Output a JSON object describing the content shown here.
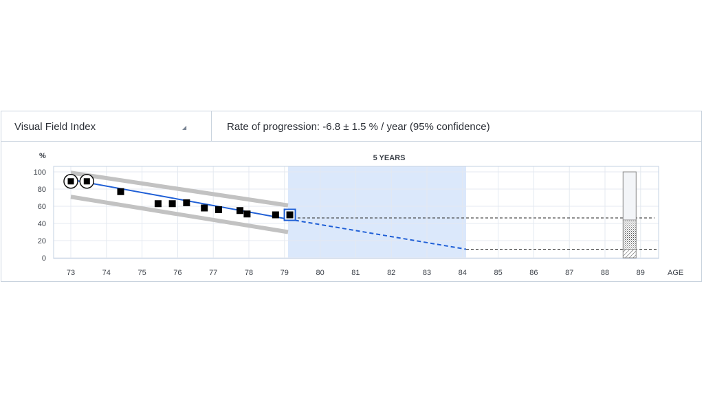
{
  "header": {
    "index_selector": "Visual Field Index",
    "selector_caret_icon": "triangle-down-icon",
    "rate_text": "Rate of progression: -6.8 ± 1.5 % / year (95% confidence)"
  },
  "chart_data": {
    "type": "scatter",
    "title": "",
    "ylabel": "%",
    "xlabel": "AGE",
    "xlim": [
      72.5,
      89.5
    ],
    "ylim": [
      0,
      100
    ],
    "x_ticks": [
      "73",
      "74",
      "75",
      "76",
      "77",
      "78",
      "79",
      "80",
      "81",
      "82",
      "83",
      "84",
      "85",
      "86",
      "87",
      "88",
      "89"
    ],
    "y_ticks": [
      "0",
      "20",
      "40",
      "60",
      "80",
      "100"
    ],
    "projection_label": "5 YEARS",
    "projection_range": [
      79.1,
      84.1
    ],
    "series": [
      {
        "name": "Visual Field Index",
        "points": [
          {
            "x": 73.0,
            "y": 89,
            "marker": "circled"
          },
          {
            "x": 73.45,
            "y": 89,
            "marker": "circled"
          },
          {
            "x": 74.4,
            "y": 77,
            "marker": "square"
          },
          {
            "x": 75.45,
            "y": 63,
            "marker": "square"
          },
          {
            "x": 75.85,
            "y": 63,
            "marker": "square"
          },
          {
            "x": 76.25,
            "y": 64,
            "marker": "square"
          },
          {
            "x": 76.75,
            "y": 58,
            "marker": "square"
          },
          {
            "x": 77.15,
            "y": 56,
            "marker": "square"
          },
          {
            "x": 77.75,
            "y": 55,
            "marker": "square"
          },
          {
            "x": 77.95,
            "y": 51,
            "marker": "square"
          },
          {
            "x": 78.75,
            "y": 50,
            "marker": "square"
          },
          {
            "x": 79.15,
            "y": 50,
            "marker": "highlighted"
          }
        ]
      }
    ],
    "trend_line": {
      "x": [
        73.0,
        79.1
      ],
      "y": [
        91,
        45
      ]
    },
    "projection_line": {
      "x": [
        79.1,
        84.1
      ],
      "y": [
        45,
        10
      ]
    },
    "confidence_band": {
      "upper": {
        "x": [
          73.0,
          79.1
        ],
        "y": [
          99,
          61
        ]
      },
      "lower": {
        "x": [
          73.0,
          79.1
        ],
        "y": [
          71,
          30
        ]
      }
    },
    "reference_levels": [
      44,
      10
    ],
    "age_bar": {
      "x": 88.7,
      "top": 100,
      "stipple_top": 44,
      "hatch_top": 10
    }
  }
}
